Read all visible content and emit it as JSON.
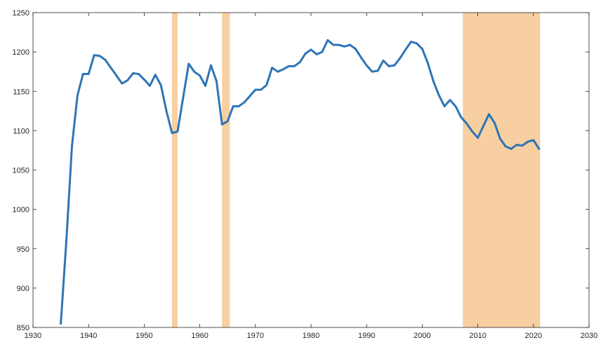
{
  "chart_data": {
    "type": "line",
    "title": "",
    "xlabel": "",
    "ylabel": "",
    "xlim": [
      1930,
      2030
    ],
    "ylim": [
      850,
      1250
    ],
    "grid": false,
    "legend": "none",
    "x_ticks": [
      "1930",
      "1940",
      "1950",
      "1960",
      "1970",
      "1980",
      "1990",
      "2000",
      "2010",
      "2020",
      "2030"
    ],
    "y_ticks": [
      "850",
      "900",
      "950",
      "1000",
      "1050",
      "1100",
      "1150",
      "1200",
      "1250"
    ],
    "shaded_periods": [
      {
        "start": 1955,
        "end": 1956
      },
      {
        "start": 1964,
        "end": 1965.4
      },
      {
        "start": 2007.3,
        "end": 2021.2
      }
    ],
    "shade_color": "#f7cfa0",
    "series": [
      {
        "line_color": "#2e75b6",
        "x": [
          1935,
          1936,
          1937,
          1938,
          1939,
          1940,
          1941,
          1942,
          1943,
          1944,
          1945,
          1946,
          1947,
          1948,
          1949,
          1950,
          1951,
          1952,
          1953,
          1954,
          1955,
          1956,
          1957,
          1958,
          1959,
          1960,
          1961,
          1962,
          1963,
          1964,
          1965,
          1966,
          1967,
          1968,
          1969,
          1970,
          1971,
          1972,
          1973,
          1974,
          1975,
          1976,
          1977,
          1978,
          1979,
          1980,
          1981,
          1982,
          1983,
          1984,
          1985,
          1986,
          1987,
          1988,
          1989,
          1990,
          1991,
          1992,
          1993,
          1994,
          1995,
          1996,
          1997,
          1998,
          1999,
          2000,
          2001,
          2002,
          2003,
          2004,
          2005,
          2006,
          2007,
          2008,
          2009,
          2010,
          2011,
          2012,
          2013,
          2014,
          2015,
          2016,
          2017,
          2018,
          2019,
          2020,
          2021
        ],
        "y": [
          855,
          960,
          1080,
          1145,
          1172,
          1172,
          1196,
          1195,
          1190,
          1180,
          1170,
          1160,
          1164,
          1173,
          1172,
          1165,
          1157,
          1171,
          1158,
          1125,
          1097,
          1099,
          1142,
          1185,
          1175,
          1170,
          1157,
          1183,
          1163,
          1108,
          1112,
          1131,
          1131,
          1136,
          1144,
          1152,
          1152,
          1158,
          1180,
          1175,
          1178,
          1182,
          1182,
          1187,
          1198,
          1203,
          1197,
          1200,
          1215,
          1209,
          1209,
          1207,
          1209,
          1204,
          1193,
          1183,
          1175,
          1176,
          1189,
          1182,
          1183,
          1192,
          1203,
          1213,
          1211,
          1204,
          1186,
          1163,
          1145,
          1131,
          1139,
          1131,
          1117,
          1109,
          1099,
          1091,
          1106,
          1121,
          1110,
          1090,
          1080,
          1077,
          1082,
          1081,
          1086,
          1088,
          1077
        ]
      }
    ]
  }
}
